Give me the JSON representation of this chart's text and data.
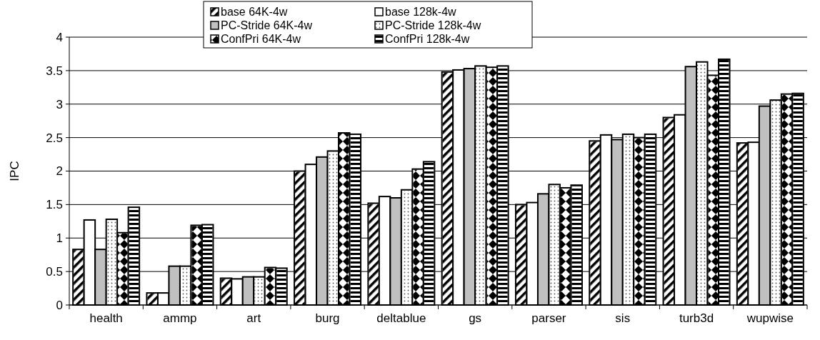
{
  "chart_data": {
    "type": "bar",
    "ylabel": "IPC",
    "categories": [
      "health",
      "ammp",
      "art",
      "burg",
      "deltablue",
      "gs",
      "parser",
      "sis",
      "turb3d",
      "wupwise"
    ],
    "series": [
      {
        "name": "base 64K-4w",
        "color": "#ffffff",
        "values": [
          0.83,
          0.18,
          0.4,
          2.0,
          1.52,
          3.48,
          1.5,
          2.45,
          2.8,
          2.42
        ]
      },
      {
        "name": "base 128k-4w",
        "color": "#ffffff",
        "values": [
          1.27,
          0.18,
          0.39,
          2.1,
          1.62,
          3.51,
          1.53,
          2.54,
          2.84,
          2.43
        ]
      },
      {
        "name": "PC-Stride 64K-4w",
        "color": "#c0c0c0",
        "values": [
          0.83,
          0.58,
          0.42,
          2.21,
          1.6,
          3.53,
          1.66,
          2.47,
          3.56,
          2.97
        ]
      },
      {
        "name": "PC-Stride 128k-4w",
        "color": "#ffffff",
        "values": [
          1.28,
          0.58,
          0.42,
          2.3,
          1.72,
          3.57,
          1.8,
          2.55,
          3.63,
          3.06
        ]
      },
      {
        "name": "ConfPri 64K-4w",
        "color": "#ffffff",
        "values": [
          1.08,
          1.19,
          0.56,
          2.57,
          2.03,
          3.55,
          1.75,
          2.5,
          3.43,
          3.15
        ]
      },
      {
        "name": "ConfPri 128k-4w",
        "color": "#ffffff",
        "values": [
          1.46,
          1.2,
          0.55,
          2.55,
          2.14,
          3.57,
          1.79,
          2.55,
          3.67,
          3.16
        ]
      }
    ],
    "ylim": [
      0,
      4
    ],
    "yticks": [
      0,
      0.5,
      1,
      1.5,
      2,
      2.5,
      3,
      3.5,
      4
    ],
    "grid": "y",
    "legend": "top"
  }
}
